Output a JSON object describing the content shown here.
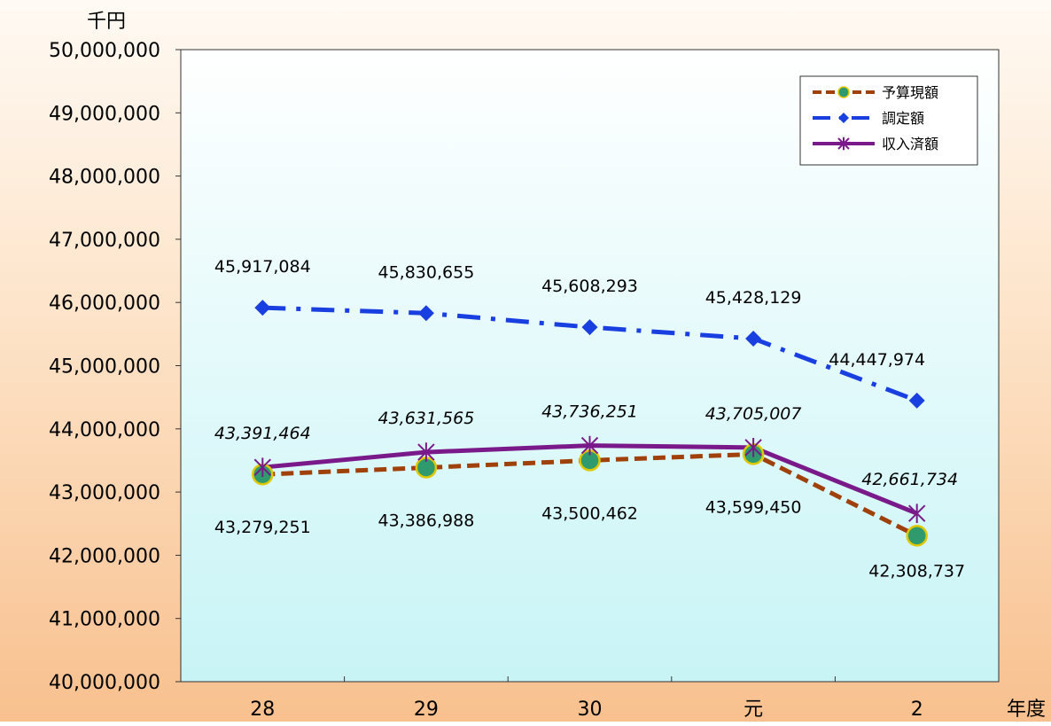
{
  "chart_data": {
    "type": "line",
    "y_unit_label": "千円",
    "x_unit_label": "年度",
    "categories": [
      "28",
      "29",
      "30",
      "元",
      "2"
    ],
    "ylim": [
      40000000,
      50000000
    ],
    "y_ticks": [
      40000000,
      41000000,
      42000000,
      43000000,
      44000000,
      45000000,
      46000000,
      47000000,
      48000000,
      49000000,
      50000000
    ],
    "y_tick_labels": [
      "40,000,000",
      "41,000,000",
      "42,000,000",
      "43,000,000",
      "44,000,000",
      "45,000,000",
      "46,000,000",
      "47,000,000",
      "48,000,000",
      "49,000,000",
      "50,000,000"
    ],
    "grid": false,
    "legend_position": "top-right",
    "series": [
      {
        "name": "予算現額",
        "color": "#a0400a",
        "marker_color": "#2e9a6e",
        "marker_edge": "#e0c800",
        "line_style": "dashed",
        "marker": "circle",
        "values": [
          43279251,
          43386988,
          43500462,
          43599450,
          42308737
        ],
        "labels": [
          "43,279,251",
          "43,386,988",
          "43,500,462",
          "43,599,450",
          "42,308,737"
        ],
        "label_italic": false
      },
      {
        "name": "調定額",
        "color": "#1a3fe0",
        "line_style": "dash-dot",
        "marker": "diamond",
        "values": [
          45917084,
          45830655,
          45608293,
          45428129,
          44447974
        ],
        "labels": [
          "45,917,084",
          "45,830,655",
          "45,608,293",
          "45,428,129",
          "44,447,974"
        ],
        "label_italic": false
      },
      {
        "name": "収入済額",
        "color": "#7a1a8a",
        "line_style": "solid",
        "marker": "star",
        "values": [
          43391464,
          43631565,
          43736251,
          43705007,
          42661734
        ],
        "labels": [
          "43,391,464",
          "43,631,565",
          "43,736,251",
          "43,705,007",
          "42,661,734"
        ],
        "label_italic": true
      }
    ]
  }
}
